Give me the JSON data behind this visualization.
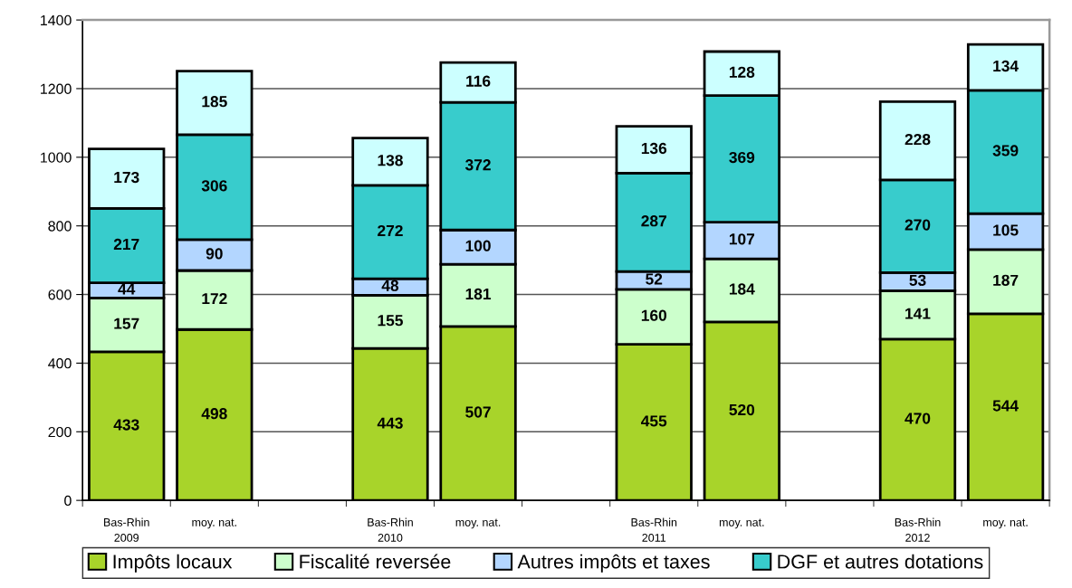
{
  "chart_data": {
    "type": "bar",
    "stacked": true,
    "categories": [
      "Bas-Rhin\n2009",
      "moy. nat.",
      null,
      "Bas-Rhin\n2010",
      "moy. nat.",
      null,
      "Bas-Rhin\n2011",
      "moy. nat.",
      null,
      "Bas-Rhin\n2012",
      "moy. nat."
    ],
    "series": [
      {
        "name": "Impôts locaux",
        "color": "#a8d42a",
        "values": [
          433,
          498,
          null,
          443,
          507,
          null,
          455,
          520,
          null,
          470,
          544
        ]
      },
      {
        "name": "Fiscalité reversée",
        "color": "#ccffcc",
        "values": [
          157,
          172,
          null,
          155,
          181,
          null,
          160,
          184,
          null,
          141,
          187
        ]
      },
      {
        "name": "Autres impôts et taxes",
        "color": "#b3d6ff",
        "values": [
          44,
          90,
          null,
          48,
          100,
          null,
          52,
          107,
          null,
          53,
          105
        ]
      },
      {
        "name": "DGF et autres dotations",
        "color": "#38cccc",
        "values": [
          217,
          306,
          null,
          272,
          372,
          null,
          287,
          369,
          null,
          270,
          359
        ]
      },
      {
        "color": "#ccffff",
        "values": [
          173,
          185,
          null,
          138,
          116,
          null,
          136,
          128,
          null,
          228,
          134
        ]
      }
    ],
    "ylim": [
      0,
      1400
    ],
    "yticks": [
      0,
      200,
      400,
      600,
      800,
      1000,
      1200,
      1400
    ],
    "grid": "y",
    "legend": "bottom",
    "data_labels": true
  }
}
